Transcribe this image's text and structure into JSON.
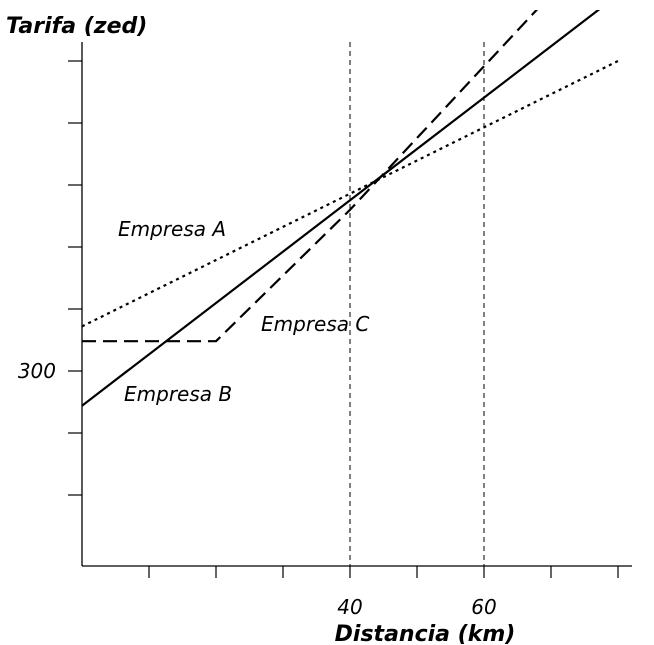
{
  "chart_data": {
    "type": "line",
    "ylabel": "Tarifa (zed)",
    "xlabel": "Distancia (km)",
    "x_tick_labels": [
      {
        "x": 40,
        "label": "40"
      },
      {
        "x": 60,
        "label": "60"
      }
    ],
    "y_tick_labels": [
      {
        "y": 300,
        "label": "300"
      }
    ],
    "x_ticks": [
      10,
      20,
      30,
      40,
      50,
      60,
      70,
      80
    ],
    "y_ticks": [
      200,
      250,
      300,
      350,
      400,
      450,
      500,
      550
    ],
    "xlim": [
      0,
      84
    ],
    "ylim": [
      150,
      570
    ],
    "reference_lines_x": [
      40,
      60
    ],
    "series": [
      {
        "name": "Empresa A",
        "style": "dotted",
        "points": [
          [
            0,
            336
          ],
          [
            80,
            550
          ]
        ]
      },
      {
        "name": "Empresa B",
        "style": "solid",
        "points": [
          [
            0,
            272
          ],
          [
            78,
            595
          ]
        ]
      },
      {
        "name": "Empresa C",
        "style": "dashed",
        "points": [
          [
            0,
            324
          ],
          [
            20,
            324
          ],
          [
            40,
            430
          ],
          [
            68,
            592
          ]
        ]
      }
    ],
    "grid": false
  },
  "labels": {
    "series_a": "Empresa A",
    "series_b": "Empresa B",
    "series_c": "Empresa C"
  }
}
